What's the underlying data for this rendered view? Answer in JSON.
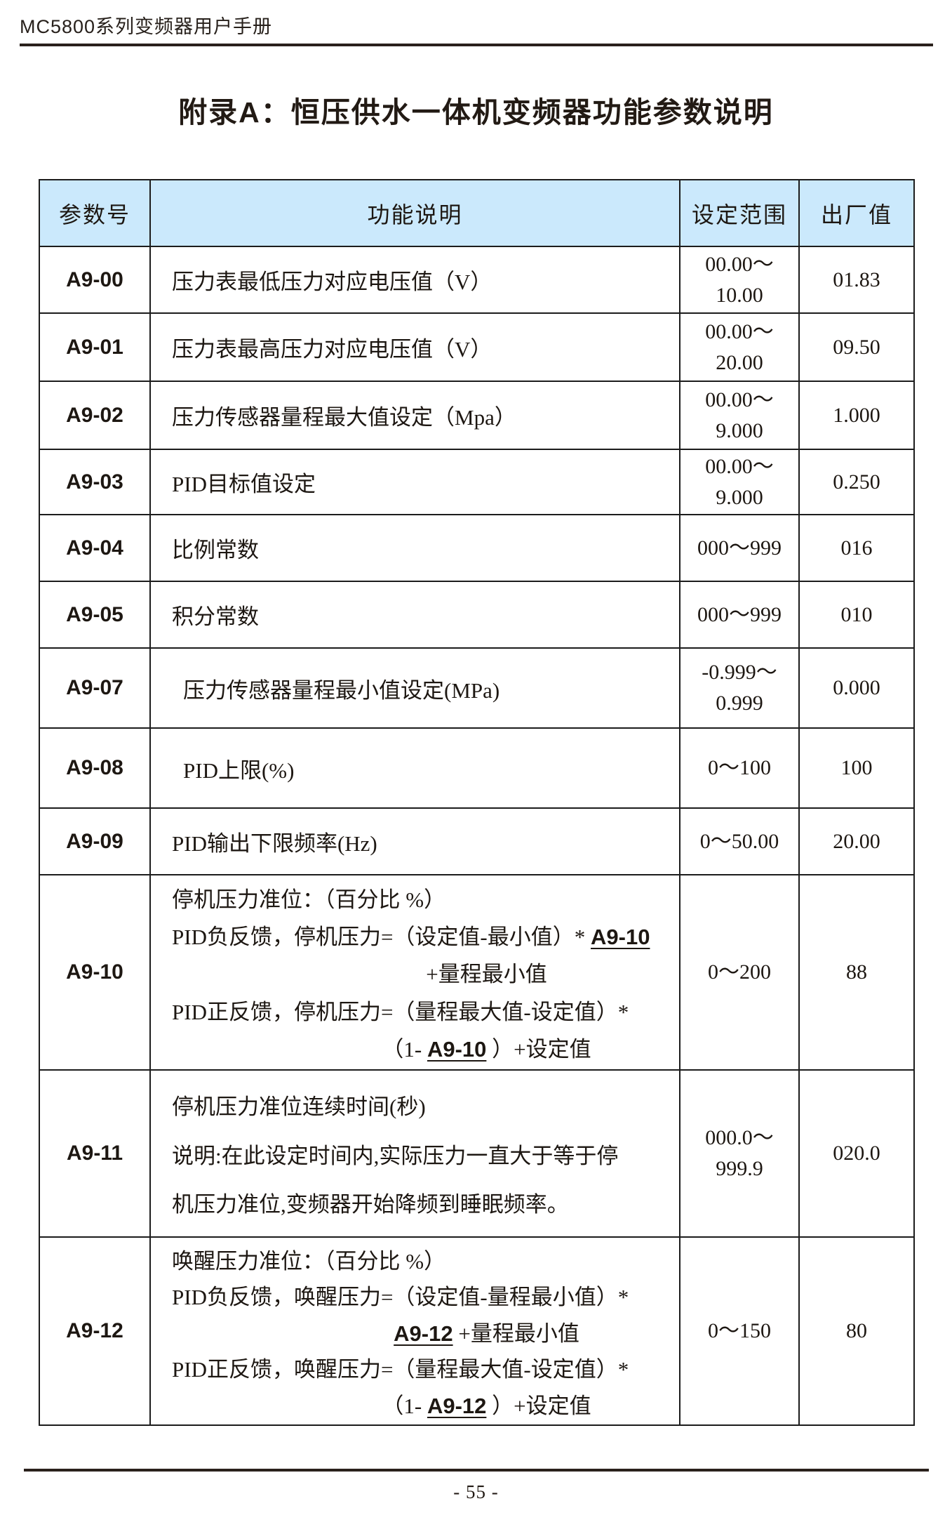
{
  "page": {
    "header": "MC5800系列变频器用户手册",
    "title": "附录A：恒压供水一体机变频器功能参数说明",
    "footer_page_number": "- 55 -"
  },
  "colors": {
    "table_header_bg": "#cbe9fc",
    "border": "#1c1c1c",
    "text": "#1d1712"
  },
  "table": {
    "columns": [
      "参数号",
      "功能说明",
      "设定范围",
      "出厂值"
    ],
    "rows": [
      {
        "id": "A9-00",
        "desc_lines": [
          {
            "align": "left",
            "segments": [
              {
                "t": "压力表最低压力对应电压值（V）"
              }
            ]
          }
        ],
        "range_lines": [
          "00.00～",
          "10.00"
        ],
        "default": "01.83"
      },
      {
        "id": "A9-01",
        "desc_lines": [
          {
            "align": "left",
            "segments": [
              {
                "t": "压力表最高压力对应电压值（V）"
              }
            ]
          }
        ],
        "range_lines": [
          "00.00～",
          "20.00"
        ],
        "default": "09.50"
      },
      {
        "id": "A9-02",
        "desc_lines": [
          {
            "align": "left",
            "segments": [
              {
                "t": "压力传感器量程最大值设定（Mpa）"
              }
            ]
          }
        ],
        "range_lines": [
          "00.00～",
          "9.000"
        ],
        "default": "1.000"
      },
      {
        "id": "A9-03",
        "desc_lines": [
          {
            "align": "left",
            "segments": [
              {
                "t": "PID目标值设定"
              }
            ]
          }
        ],
        "range_lines": [
          "00.00～",
          "9.000"
        ],
        "default": "0.250"
      },
      {
        "id": "A9-04",
        "desc_lines": [
          {
            "align": "left",
            "segments": [
              {
                "t": "比例常数"
              }
            ]
          }
        ],
        "range_lines": [
          "000～999"
        ],
        "default": "016"
      },
      {
        "id": "A9-05",
        "desc_lines": [
          {
            "align": "left",
            "segments": [
              {
                "t": "积分常数"
              }
            ]
          }
        ],
        "range_lines": [
          "000～999"
        ],
        "default": "010"
      },
      {
        "id": "A9-07",
        "indent": true,
        "desc_lines": [
          {
            "align": "left",
            "segments": [
              {
                "t": "压力传感器量程最小值设定(MPa)"
              }
            ]
          }
        ],
        "range_lines": [
          "-0.999～",
          "0.999"
        ],
        "default": "0.000"
      },
      {
        "id": "A9-08",
        "indent": true,
        "desc_lines": [
          {
            "align": "left",
            "segments": [
              {
                "t": "PID上限(%)"
              }
            ]
          }
        ],
        "range_lines": [
          "0～100"
        ],
        "default": "100"
      },
      {
        "id": "A9-09",
        "desc_lines": [
          {
            "align": "left",
            "segments": [
              {
                "t": "PID输出下限频率(Hz)"
              }
            ]
          }
        ],
        "range_lines": [
          "0～50.00"
        ],
        "default": "20.00"
      },
      {
        "id": "A9-10",
        "desc_lines": [
          {
            "align": "left",
            "segments": [
              {
                "t": "停机压力准位：（百分比 %）"
              }
            ]
          },
          {
            "align": "left",
            "segments": [
              {
                "t": "PID负反馈，停机压力=（设定值-最小值）* "
              },
              {
                "t": "A9-10",
                "u": true
              }
            ]
          },
          {
            "align": "center",
            "segments": [
              {
                "t": "+量程最小值"
              }
            ]
          },
          {
            "align": "left",
            "segments": [
              {
                "t": "PID正反馈，停机压力=（量程最大值-设定值）*"
              }
            ]
          },
          {
            "align": "center",
            "segments": [
              {
                "t": "（1- "
              },
              {
                "t": "A9-10",
                "u": true
              },
              {
                "t": " ）+设定值"
              }
            ]
          }
        ],
        "range_lines": [
          "0～200"
        ],
        "default": "88"
      },
      {
        "id": "A9-11",
        "desc_lines": [
          {
            "align": "left",
            "segments": [
              {
                "t": "停机压力准位连续时间(秒)"
              }
            ]
          },
          {
            "align": "left",
            "segments": [
              {
                "t": "说明:在此设定时间内,实际压力一直大于等于停"
              }
            ]
          },
          {
            "align": "left",
            "segments": [
              {
                "t": "机压力准位,变频器开始降频到睡眠频率。"
              }
            ]
          }
        ],
        "range_lines": [
          "000.0～",
          "999.9"
        ],
        "default": "020.0"
      },
      {
        "id": "A9-12",
        "desc_lines": [
          {
            "align": "left",
            "segments": [
              {
                "t": "唤醒压力准位：（百分比 %）"
              }
            ]
          },
          {
            "align": "left",
            "segments": [
              {
                "t": "PID负反馈，唤醒压力=（设定值-量程最小值）*"
              }
            ]
          },
          {
            "align": "center",
            "segments": [
              {
                "t": "A9-12",
                "u": true
              },
              {
                "t": " +量程最小值"
              }
            ]
          },
          {
            "align": "left",
            "segments": [
              {
                "t": "PID正反馈，唤醒压力=（量程最大值-设定值）*"
              }
            ]
          },
          {
            "align": "center",
            "segments": [
              {
                "t": "（1- "
              },
              {
                "t": "A9-12",
                "u": true
              },
              {
                "t": " ）+设定值"
              }
            ]
          }
        ],
        "range_lines": [
          "0～150"
        ],
        "default": "80"
      }
    ]
  }
}
